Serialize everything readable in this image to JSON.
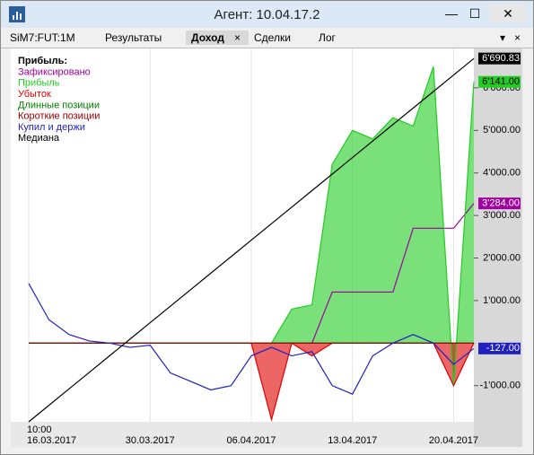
{
  "window": {
    "title": "Агент: 10.04.17.2"
  },
  "tabs": [
    "SiM7:FUT:1M",
    "Результаты",
    "Доход",
    "Сделки",
    "Лог"
  ],
  "chart_data": {
    "type": "line",
    "legend_title": "Прибыль:",
    "start_time": "10:00",
    "categories": [
      "16.03.2017",
      null,
      null,
      null,
      null,
      null,
      "30.03.2017",
      null,
      null,
      null,
      null,
      "06.04.2017",
      null,
      null,
      null,
      null,
      "13.04.2017",
      null,
      null,
      null,
      null,
      "20.04.2017",
      null
    ],
    "series": [
      {
        "name": "Зафиксировано",
        "color": "#a000a0",
        "style": "line",
        "values": [
          0,
          0,
          0,
          0,
          0,
          0,
          0,
          0,
          0,
          0,
          0,
          0,
          0,
          0,
          0,
          1200,
          1200,
          1200,
          1200,
          2700,
          2700,
          2700,
          3284
        ]
      },
      {
        "name": "Прибыль",
        "color": "#22cc22",
        "style": "area",
        "values": [
          0,
          0,
          0,
          0,
          0,
          0,
          0,
          0,
          0,
          0,
          0,
          0,
          0,
          800,
          900,
          4200,
          5000,
          4800,
          5300,
          5100,
          6500,
          -1000,
          6141
        ]
      },
      {
        "name": "Убыток",
        "color": "#e00000",
        "style": "area",
        "values": [
          0,
          0,
          0,
          0,
          0,
          0,
          0,
          0,
          0,
          0,
          0,
          0,
          -1800,
          0,
          -300,
          0,
          0,
          0,
          0,
          0,
          0,
          -1000,
          0
        ]
      },
      {
        "name": "Длинные позиции",
        "color": "#008000",
        "style": "line",
        "values": [
          0,
          0,
          0,
          0,
          0,
          0,
          0,
          0,
          0,
          0,
          0,
          0,
          0,
          0,
          0,
          0,
          0,
          0,
          0,
          0,
          0,
          0,
          0
        ]
      },
      {
        "name": "Короткие позиции",
        "color": "#a00000",
        "style": "line",
        "values": [
          0,
          0,
          0,
          0,
          0,
          0,
          0,
          0,
          0,
          0,
          0,
          0,
          0,
          0,
          0,
          0,
          0,
          0,
          0,
          0,
          0,
          0,
          0
        ]
      },
      {
        "name": "Купил и держи",
        "color": "#2020c0",
        "style": "line",
        "values": [
          1400,
          550,
          200,
          50,
          0,
          -100,
          -50,
          -700,
          -900,
          -1100,
          -1000,
          -300,
          -100,
          -300,
          -200,
          -1000,
          -1200,
          -300,
          0,
          200,
          0,
          -500,
          -127
        ]
      },
      {
        "name": "Медиана",
        "color": "#000000",
        "style": "line",
        "values": [
          -1850,
          -1461.8,
          -1073.6,
          -685.3,
          -297.1,
          91.1,
          479.3,
          867.5,
          1255.8,
          1644,
          2032.2,
          2420.4,
          2808.6,
          3196.9,
          3585.1,
          3973.3,
          4361.5,
          4749.7,
          5138,
          5526.2,
          5914.4,
          6302.6,
          6690.83
        ]
      }
    ],
    "tags": [
      {
        "value": 6690.83,
        "label": "6'690.83",
        "color": "#000000",
        "text_color": "#ffffff"
      },
      {
        "value": 6141,
        "label": "6'141.00",
        "color": "#22cc22",
        "text_color": "#000000"
      },
      {
        "value": 3284,
        "label": "3'284.00",
        "color": "#a000a0",
        "text_color": "#ffffff"
      },
      {
        "value": -127,
        "label": "-127.00",
        "color": "#2020c0",
        "text_color": "#ffffff"
      }
    ],
    "ylim": [
      -1850,
      6800
    ],
    "yticks": [
      {
        "value": -1000,
        "label": "-1'000.00"
      },
      {
        "value": 1000,
        "label": "1'000.00"
      },
      {
        "value": 2000,
        "label": "2'000.00"
      },
      {
        "value": 3000,
        "label": "3'000.00"
      },
      {
        "value": 4000,
        "label": "4'000.00"
      },
      {
        "value": 5000,
        "label": "5'000.00"
      },
      {
        "value": 6000,
        "label": "6'000.00"
      }
    ],
    "grid": "x"
  }
}
